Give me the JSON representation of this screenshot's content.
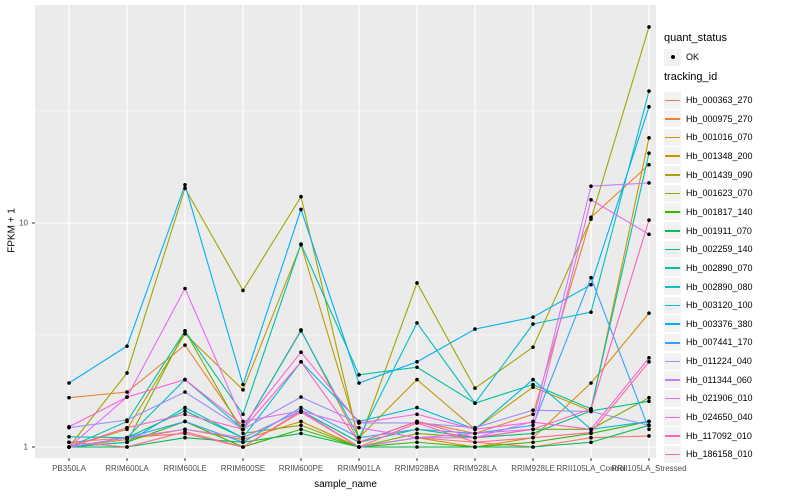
{
  "ui": {
    "xlabel": "sample_name",
    "ylabel": "FPKM + 1",
    "legend_quant_title": "quant_status",
    "legend_quant_ok": "OK",
    "legend_tracking_title": "tracking_id"
  },
  "chart_data": {
    "type": "line",
    "title": "",
    "xlabel": "sample_name",
    "ylabel": "FPKM + 1",
    "y_scale": "log10",
    "ylim": [
      0.9,
      93
    ],
    "y_ticks": [
      1,
      10
    ],
    "y_minor_gridlines": [
      3.162,
      31.62
    ],
    "grid": true,
    "panel_color": "#EBEBEB",
    "grid_color": "#FFFFFF",
    "point_color": "#000000",
    "legend_position": "right",
    "quant_status": [
      "OK"
    ],
    "categories": [
      "PB350LA",
      "RRIM600LA",
      "RRIM600LE",
      "RRIM600SE",
      "RRIM600PE",
      "RRIM901LA",
      "RRIM928BA",
      "RRIM928LA",
      "RRIM928LE",
      "RRII105LA_Control",
      "RRII105LA_Stressed"
    ],
    "series": [
      {
        "name": "Hb_000363_270",
        "color": "#F8766D",
        "values": [
          1.05,
          1.1,
          1.15,
          1.0,
          1.45,
          1.0,
          1.1,
          1.05,
          1.0,
          1.1,
          1.12
        ]
      },
      {
        "name": "Hb_000975_270",
        "color": "#EA8331",
        "values": [
          1.66,
          1.76,
          2.85,
          1.2,
          3.33,
          1.05,
          1.3,
          1.15,
          1.4,
          10.6,
          18.2
        ]
      },
      {
        "name": "Hb_001016_070",
        "color": "#D89000",
        "values": [
          1.0,
          1.08,
          1.2,
          1.08,
          1.3,
          1.0,
          1.1,
          1.0,
          1.1,
          1.93,
          3.96
        ]
      },
      {
        "name": "Hb_001348_200",
        "color": "#C09B00",
        "values": [
          1.0,
          1.2,
          3.2,
          1.8,
          8.0,
          1.1,
          2.0,
          1.2,
          1.85,
          1.45,
          24.0
        ]
      },
      {
        "name": "Hb_001439_090",
        "color": "#A3A500",
        "values": [
          1.0,
          2.14,
          14.3,
          5.0,
          13.1,
          1.05,
          5.4,
          1.83,
          2.79,
          10.4,
          75.0
        ]
      },
      {
        "name": "Hb_001623_070",
        "color": "#7CAE00",
        "values": [
          1.0,
          1.05,
          3.3,
          1.15,
          1.25,
          1.0,
          1.15,
          1.1,
          1.2,
          1.2,
          1.66
        ]
      },
      {
        "name": "Hb_001817_140",
        "color": "#39B600",
        "values": [
          1.0,
          1.05,
          1.3,
          1.0,
          1.2,
          1.0,
          1.05,
          1.0,
          1.05,
          1.15,
          1.3
        ]
      },
      {
        "name": "Hb_001911_070",
        "color": "#00BB4E",
        "values": [
          1.0,
          1.0,
          1.1,
          1.05,
          1.15,
          1.0,
          1.0,
          1.0,
          1.0,
          1.05,
          1.25
        ]
      },
      {
        "name": "Hb_002259_140",
        "color": "#00BF7D",
        "values": [
          1.0,
          1.1,
          1.45,
          1.1,
          1.45,
          1.05,
          1.2,
          1.1,
          1.15,
          1.45,
          1.6
        ]
      },
      {
        "name": "Hb_002890_070",
        "color": "#00C1A3",
        "values": [
          1.0,
          1.3,
          3.3,
          1.4,
          8.05,
          2.1,
          2.27,
          1.57,
          1.9,
          1.48,
          20.5
        ]
      },
      {
        "name": "Hb_002890_080",
        "color": "#00BFC4",
        "values": [
          1.11,
          1.1,
          2.0,
          1.2,
          3.3,
          1.1,
          3.58,
          1.57,
          3.54,
          4.0,
          38.8
        ]
      },
      {
        "name": "Hb_003120_100",
        "color": "#00BADE",
        "values": [
          1.0,
          1.05,
          1.5,
          1.1,
          2.4,
          1.3,
          1.5,
          1.2,
          2.0,
          1.2,
          1.3
        ]
      },
      {
        "name": "Hb_003376_380",
        "color": "#00B0F6",
        "values": [
          1.93,
          2.82,
          14.8,
          1.9,
          11.5,
          1.93,
          2.4,
          3.36,
          3.8,
          5.3,
          33.0
        ]
      },
      {
        "name": "Hb_007441_170",
        "color": "#35A2FF",
        "values": [
          1.0,
          1.1,
          1.3,
          1.05,
          1.5,
          1.1,
          1.2,
          1.15,
          1.25,
          5.7,
          1.2
        ]
      },
      {
        "name": "Hb_011224_040",
        "color": "#9590FF",
        "values": [
          1.22,
          1.32,
          1.76,
          1.2,
          1.67,
          1.28,
          1.28,
          1.22,
          1.46,
          1.44,
          1.25
        ]
      },
      {
        "name": "Hb_011344_060",
        "color": "#C77CFF",
        "values": [
          1.0,
          1.1,
          1.2,
          1.1,
          1.45,
          1.0,
          1.1,
          1.1,
          1.3,
          14.6,
          15.1
        ]
      },
      {
        "name": "Hb_021906_010",
        "color": "#E76BF3",
        "values": [
          1.0,
          1.67,
          5.1,
          1.3,
          1.45,
          1.22,
          1.1,
          1.15,
          1.2,
          12.7,
          8.9
        ]
      },
      {
        "name": "Hb_024650_040",
        "color": "#FA62DB",
        "values": [
          1.23,
          1.67,
          2.0,
          1.25,
          2.65,
          1.28,
          1.4,
          1.2,
          1.29,
          1.2,
          2.5
        ]
      },
      {
        "name": "Hb_117092_010",
        "color": "#FF62BC",
        "values": [
          1.0,
          1.22,
          1.4,
          1.2,
          2.4,
          1.05,
          1.3,
          1.1,
          1.2,
          1.48,
          10.3
        ]
      },
      {
        "name": "Hb_186158_010",
        "color": "#FF6A98",
        "values": [
          1.05,
          1.0,
          1.17,
          1.0,
          1.43,
          1.0,
          1.28,
          1.05,
          1.1,
          1.16,
          2.4
        ]
      }
    ]
  }
}
